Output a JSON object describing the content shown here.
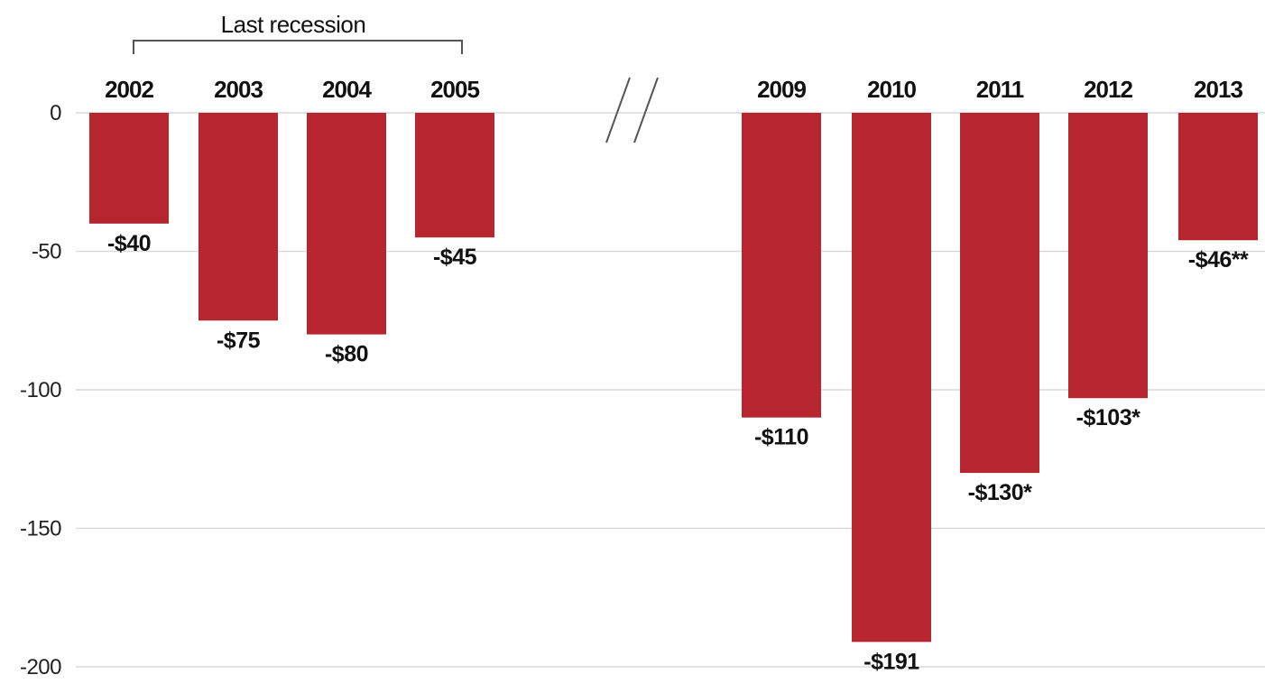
{
  "chart_data": {
    "type": "bar",
    "categories": [
      "2002",
      "2003",
      "2004",
      "2005",
      "2009",
      "2010",
      "2011",
      "2012",
      "2013"
    ],
    "values": [
      -40,
      -75,
      -80,
      -45,
      -110,
      -191,
      -130,
      -103,
      -46
    ],
    "value_labels": [
      "-$40",
      "-$75",
      "-$80",
      "-$45",
      "-$110",
      "-$191",
      "-$130*",
      "-$103*",
      "-$46**"
    ],
    "y_ticks": [
      0,
      -50,
      -100,
      -150,
      -200
    ],
    "y_tick_labels": [
      "0",
      "-50",
      "-100",
      "-150",
      "-200"
    ],
    "ylim": [
      -200,
      0
    ],
    "grid": true,
    "axis_break": "between 2005 and 2009",
    "bar_color": "#b7252e",
    "annotation": {
      "text": "Last recession",
      "spans": [
        "2002",
        "2005"
      ]
    }
  }
}
